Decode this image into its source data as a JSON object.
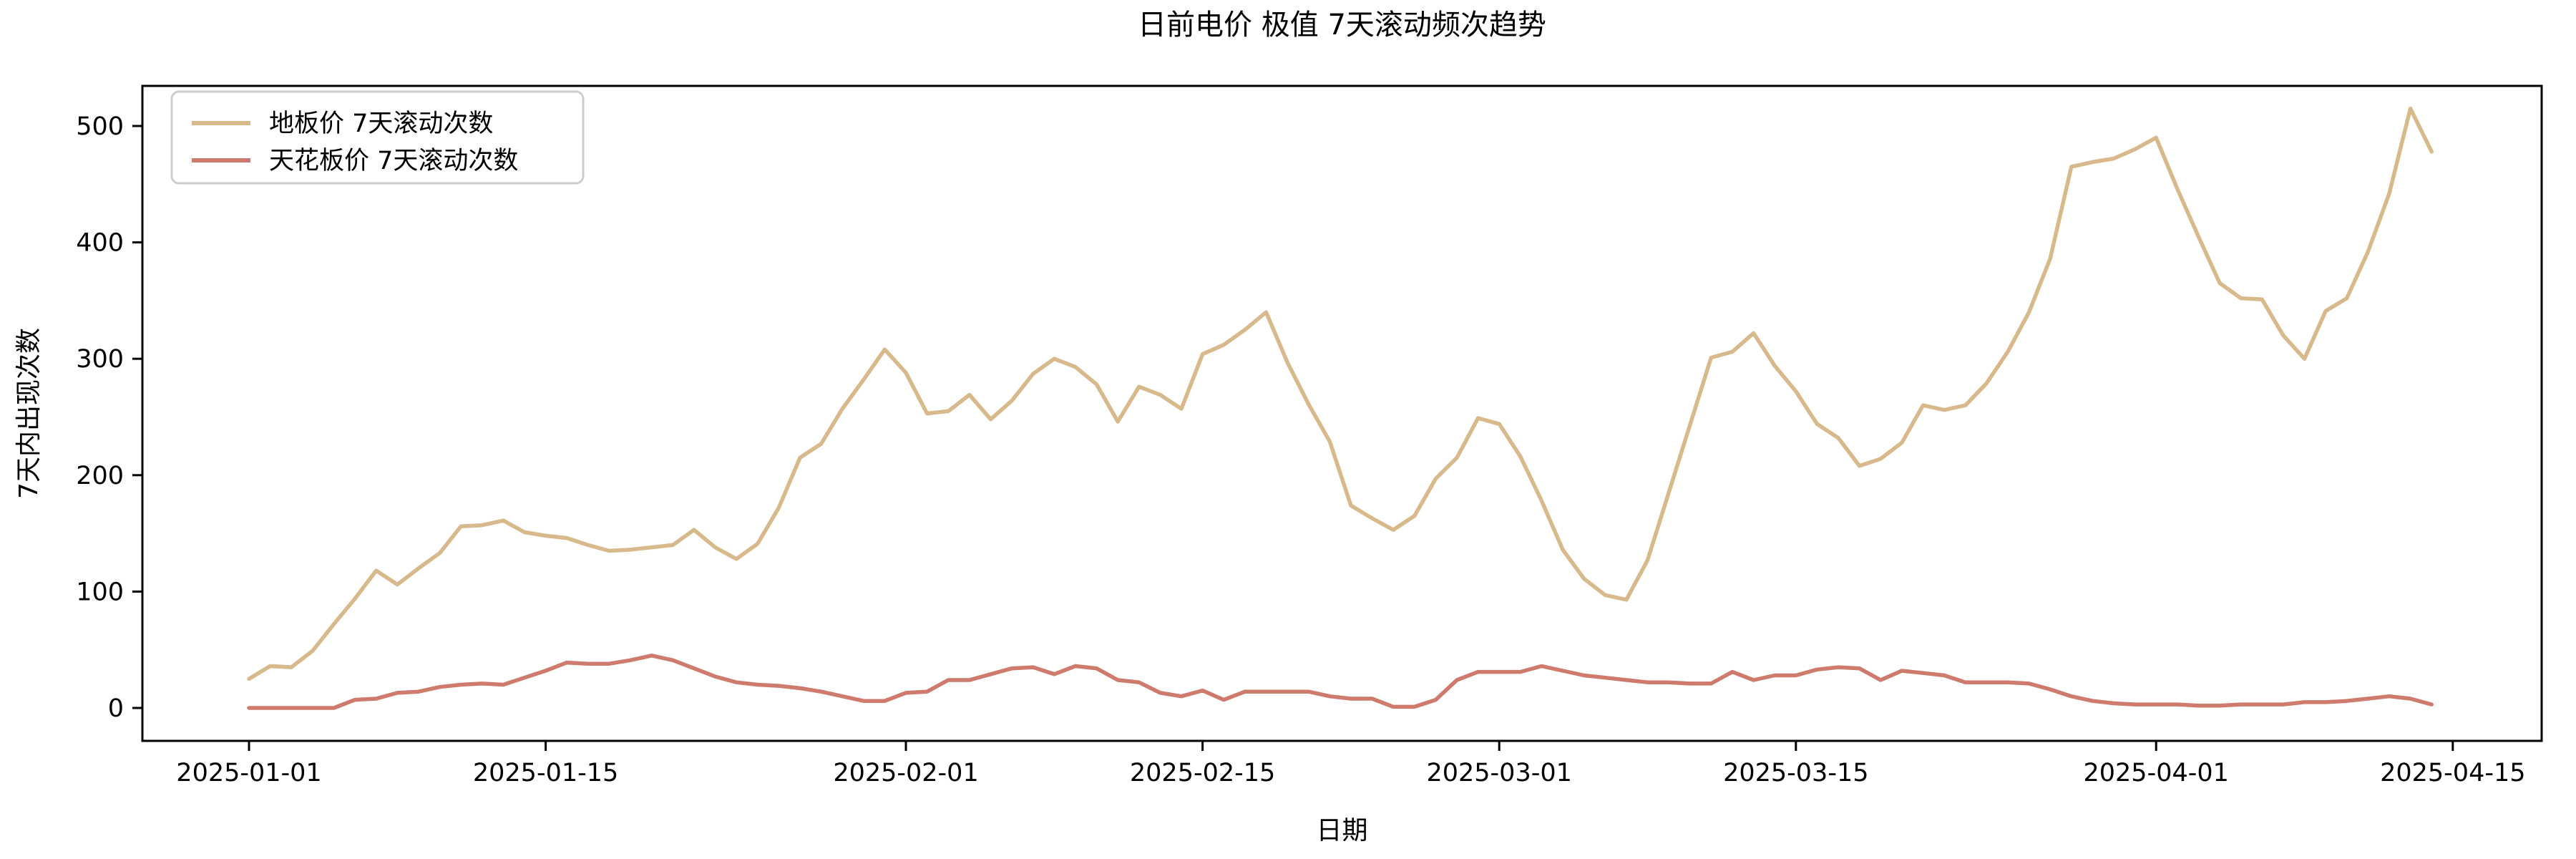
{
  "title": "日前电价 极值 7天滚动频次趋势",
  "chart_data": {
    "type": "line",
    "title": "日前电价 极值 7天滚动频次趋势",
    "xlabel": "日期",
    "ylabel": "7天内出现次数",
    "grid": false,
    "legend_position": "upper left",
    "x_start_date": "2025-01-01",
    "x_end_date": "2025-04-14",
    "x_tick_labels": [
      "2025-01-01",
      "2025-01-15",
      "2025-02-01",
      "2025-02-15",
      "2025-03-01",
      "2025-03-15",
      "2025-04-01",
      "2025-04-15"
    ],
    "y_ticks": [
      "0",
      "100",
      "200",
      "300",
      "400",
      "500"
    ],
    "y_tick_values": [
      0,
      100,
      200,
      300,
      400,
      500
    ],
    "ylim": [
      -26,
      541
    ],
    "series": [
      {
        "name": "地板价 7天滚动次数",
        "color": "#d8b98b",
        "values": [
          25,
          36,
          35,
          49,
          72,
          94,
          118,
          106,
          120,
          133,
          156,
          157,
          161,
          151,
          148,
          146,
          140,
          135,
          136,
          138,
          140,
          153,
          138,
          128,
          141,
          172,
          215,
          227,
          257,
          282,
          308,
          288,
          253,
          255,
          269,
          248,
          264,
          287,
          300,
          293,
          278,
          246,
          276,
          269,
          257,
          304,
          312,
          325,
          340,
          297,
          261,
          229,
          174,
          163,
          153,
          165,
          197,
          215,
          249,
          244,
          216,
          178,
          136,
          111,
          97,
          93,
          127,
          185,
          243,
          301,
          306,
          322,
          294,
          272,
          244,
          232,
          208,
          214,
          228,
          260,
          256,
          260,
          279,
          306,
          340,
          386,
          465,
          469,
          472,
          480,
          490,
          446,
          405,
          365,
          352,
          351,
          320,
          300,
          341,
          352,
          392,
          442,
          515,
          478
        ]
      },
      {
        "name": "天花板价 7天滚动次数",
        "color": "#ce7b6d",
        "values": [
          0,
          0,
          0,
          0,
          0,
          7,
          8,
          13,
          14,
          18,
          20,
          21,
          20,
          26,
          32,
          39,
          38,
          38,
          41,
          45,
          41,
          34,
          27,
          22,
          20,
          19,
          17,
          14,
          10,
          6,
          6,
          13,
          14,
          24,
          24,
          29,
          34,
          35,
          29,
          36,
          34,
          24,
          22,
          13,
          10,
          15,
          7,
          14,
          14,
          14,
          14,
          10,
          8,
          8,
          1,
          1,
          7,
          24,
          31,
          31,
          31,
          36,
          32,
          28,
          26,
          24,
          22,
          22,
          21,
          21,
          31,
          24,
          28,
          28,
          33,
          35,
          34,
          24,
          32,
          30,
          28,
          22,
          22,
          22,
          21,
          16,
          10,
          6,
          4,
          3,
          3,
          3,
          2,
          2,
          3,
          3,
          3,
          5,
          5,
          6,
          8,
          10,
          8,
          3
        ]
      }
    ]
  },
  "colors": {
    "background": "#ffffff",
    "axis": "#000000",
    "legend_border": "#cccccc",
    "floor_line": "#d8b98b",
    "ceiling_line": "#ce7b6d"
  }
}
